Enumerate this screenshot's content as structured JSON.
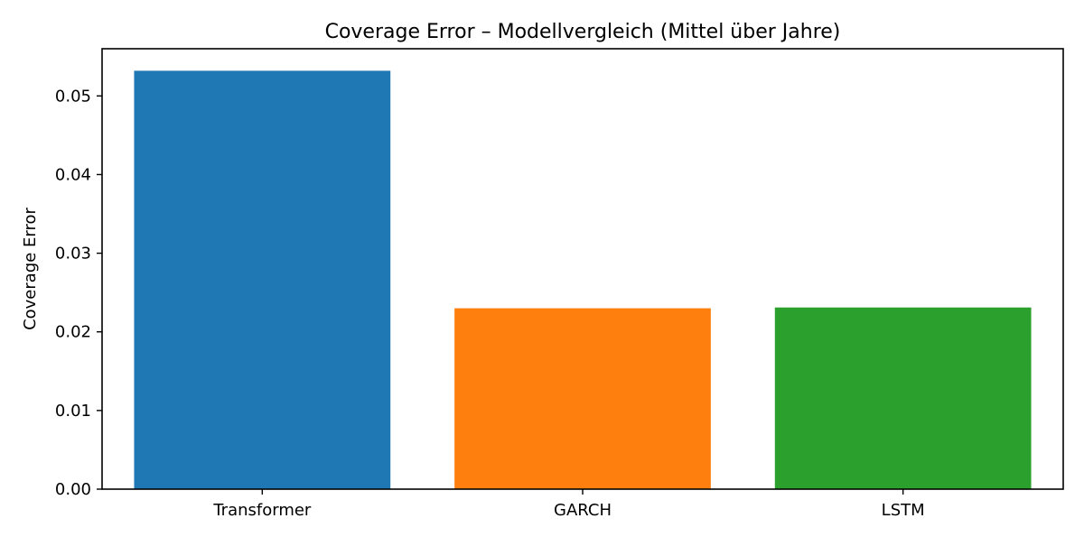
{
  "chart_data": {
    "type": "bar",
    "title": "Coverage Error – Modellvergleich (Mittel über Jahre)",
    "xlabel": "",
    "ylabel": "Coverage Error",
    "categories": [
      "Transformer",
      "GARCH",
      "LSTM"
    ],
    "values": [
      0.0532,
      0.023,
      0.0231
    ],
    "colors": [
      "#1f77b4",
      "#ff7f0e",
      "#2ca02c"
    ],
    "ylim": [
      0,
      0.056
    ],
    "yticks": [
      0.0,
      0.01,
      0.02,
      0.03,
      0.04,
      0.05
    ],
    "ytick_labels": [
      "0.00",
      "0.01",
      "0.02",
      "0.03",
      "0.04",
      "0.05"
    ],
    "grid": false,
    "legend": "none"
  }
}
